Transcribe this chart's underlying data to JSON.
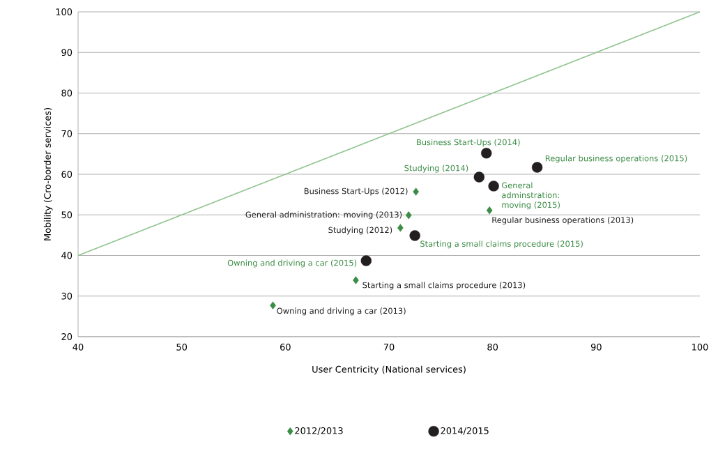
{
  "chart_data": {
    "type": "scatter",
    "xlabel": "User  Centricity (National services)",
    "ylabel": "Mobility (Cro-border  services)",
    "xlim": [
      40,
      100
    ],
    "ylim": [
      20,
      100
    ],
    "xticks": [
      40,
      50,
      60,
      70,
      80,
      90,
      100
    ],
    "yticks": [
      20,
      30,
      40,
      50,
      60,
      70,
      80,
      90,
      100
    ],
    "grid": "y",
    "legend": "bottom",
    "series": [
      {
        "name": "2012/2013",
        "color": "#3b8c45",
        "marker": "diamond",
        "x": [
          58.8,
          66.8,
          71.1,
          71.9,
          72.6,
          79.7
        ],
        "values": [
          27.7,
          33.9,
          46.8,
          49.9,
          55.7,
          51.1
        ]
      },
      {
        "name": "2014/2015",
        "color": "#231f20",
        "marker": "circle",
        "x": [
          67.8,
          72.5,
          78.7,
          79.4,
          80.1,
          84.3
        ],
        "values": [
          38.7,
          44.9,
          59.3,
          65.2,
          57.1,
          61.7
        ]
      },
      {
        "type": "line",
        "color": "#8fc48f",
        "marker": "none",
        "x": [
          40,
          100
        ],
        "values": [
          40,
          100
        ]
      }
    ],
    "annotations": [
      {
        "text": "Owning and driving a car (2013)",
        "x": 58.8,
        "y": 27.7
      },
      {
        "text": "Starting  a small claims procedure (2013)",
        "x": 66.8,
        "y": 33.9
      },
      {
        "text": "Studying (2012)",
        "x": 71.1,
        "y": 46.8
      },
      {
        "text": "General administration: moving (2013)",
        "x": 71.9,
        "y": 49.9
      },
      {
        "text": "Business Start-Ups (2012)",
        "x": 72.6,
        "y": 55.7
      },
      {
        "text": "Regular business operations (2013)",
        "x": 79.7,
        "y": 51.1
      },
      {
        "text": "Owning and driving a car (2015)",
        "x": 67.8,
        "y": 38.7
      },
      {
        "text": "Starting a small claims procedure (2015)",
        "x": 72.5,
        "y": 44.9
      },
      {
        "text": "Studying (2014)",
        "x": 78.7,
        "y": 59.3
      },
      {
        "text": "Business Start-Ups (2014)",
        "x": 79.4,
        "y": 65.2
      },
      {
        "text": "General adminstration: moving (2015)",
        "x": 80.1,
        "y": 57.1
      },
      {
        "text": "Regular business operations (2015)",
        "x": 84.3,
        "y": 61.7
      }
    ]
  }
}
